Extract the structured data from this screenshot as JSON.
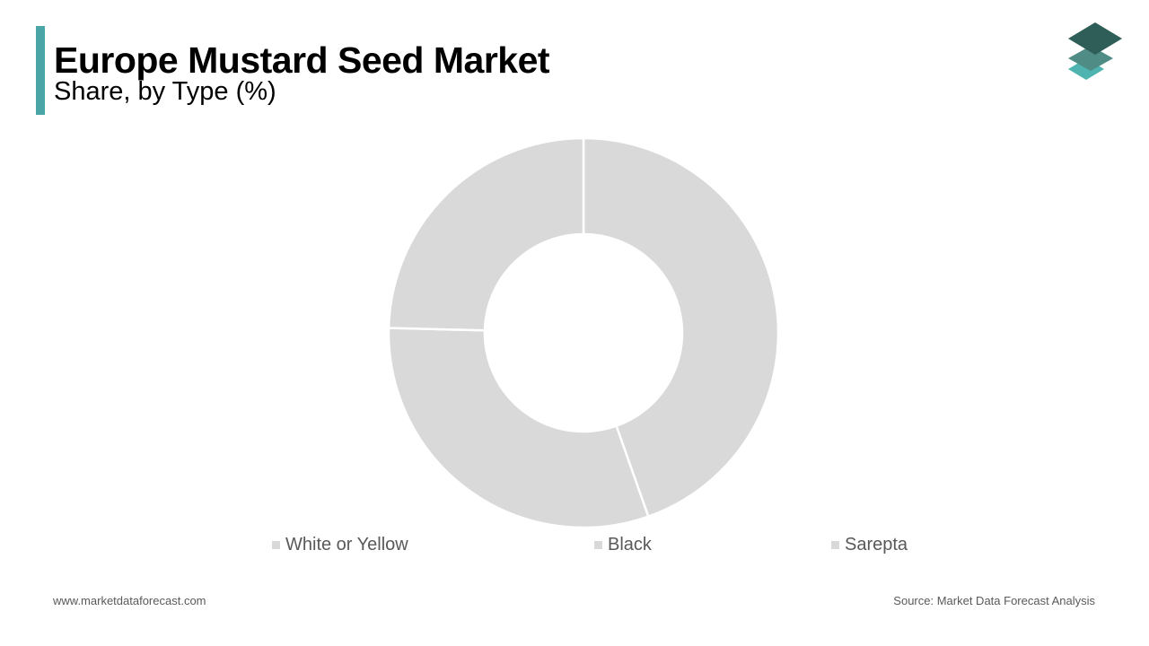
{
  "header": {
    "title": "Europe Mustard Seed Market",
    "subtitle": "Share, by Type (%)"
  },
  "colors": {
    "accent": "#4aa6a6",
    "slice_fill": "#d9d9d9",
    "slice_border": "#ffffff",
    "logo_dark": "#2f5d58",
    "logo_mid": "#4f8c86",
    "logo_light": "#4fb3b0"
  },
  "logo": {
    "icon": "stacked-layers-icon"
  },
  "chart_data": {
    "type": "pie",
    "variant": "donut",
    "title": "Europe Mustard Seed Market",
    "subtitle": "Share, by Type (%)",
    "categories": [
      "White or Yellow",
      "Black",
      "Sarepta"
    ],
    "values": [
      44.6,
      30.8,
      24.6
    ],
    "start_angle_deg": 0,
    "direction": "clockwise",
    "legend_position": "bottom",
    "data_labels": false
  },
  "footer": {
    "website": "www.marketdataforecast.com",
    "source": "Source: Market Data Forecast Analysis"
  }
}
